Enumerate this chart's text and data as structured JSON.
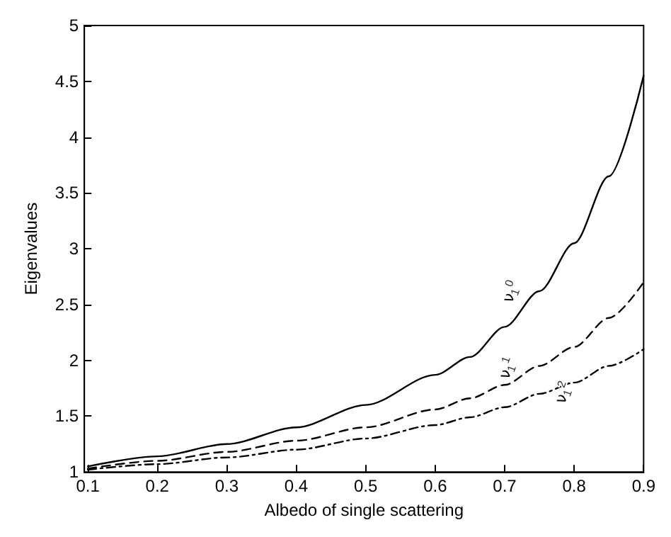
{
  "chart_data": {
    "type": "line",
    "xlabel": "Albedo of single scattering",
    "ylabel": "Eigenvalues",
    "xlim": [
      0.095,
      0.9
    ],
    "ylim": [
      1,
      5
    ],
    "xticks": [
      0.1,
      0.2,
      0.3,
      0.4,
      0.5,
      0.6,
      0.7,
      0.8,
      0.9
    ],
    "yticks": [
      1,
      1.5,
      2,
      2.5,
      3,
      3.5,
      4,
      4.5,
      5
    ],
    "grid": false,
    "legend": false,
    "marker": "none",
    "x": [
      0.1,
      0.2,
      0.3,
      0.4,
      0.5,
      0.6,
      0.65,
      0.7,
      0.75,
      0.8,
      0.85,
      0.9
    ],
    "series": [
      {
        "name": "ν$_{1}$$^{0}$",
        "color": "#000000",
        "line_style": "solid",
        "values": [
          1.05,
          1.14,
          1.25,
          1.4,
          1.6,
          1.87,
          2.03,
          2.3,
          2.62,
          3.05,
          3.65,
          4.55
        ]
      },
      {
        "name": "ν$_{1}$$^{1}$",
        "color": "#000000",
        "line_style": "dashed",
        "values": [
          1.03,
          1.1,
          1.18,
          1.28,
          1.4,
          1.56,
          1.66,
          1.78,
          1.95,
          2.12,
          2.38,
          2.7
        ]
      },
      {
        "name": "ν$_{1}$$^{2}$",
        "color": "#000000",
        "line_style": "dotted",
        "values": [
          1.02,
          1.07,
          1.13,
          1.2,
          1.3,
          1.42,
          1.49,
          1.58,
          1.7,
          1.8,
          1.95,
          2.1
        ]
      }
    ]
  }
}
